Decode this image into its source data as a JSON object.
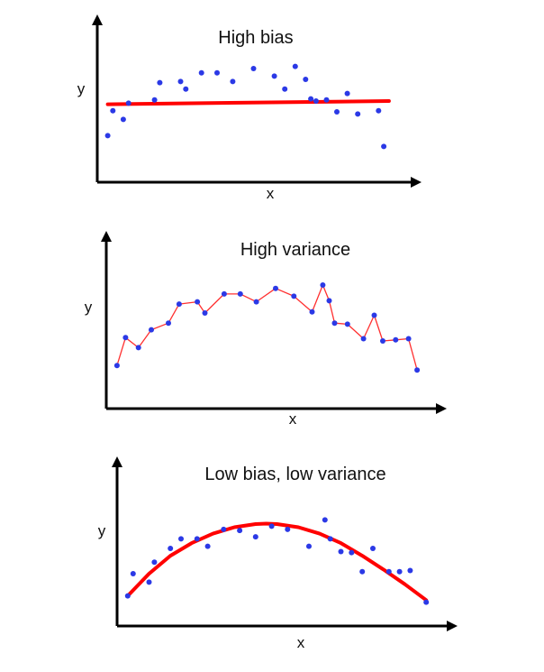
{
  "colors": {
    "axis": "#000000",
    "points": "#2b39e6",
    "fit": "#ff0000",
    "fit_thin": "#ff3030"
  },
  "chart_data": [
    {
      "type": "scatter",
      "title": "High bias",
      "xlabel": "x",
      "ylabel": "y",
      "xlim": [
        0,
        30
      ],
      "ylim": [
        0,
        10
      ],
      "grid": false,
      "legend": "none",
      "series": [
        {
          "kind": "points",
          "x": [
            1,
            1.5,
            2.5,
            3,
            5.5,
            6,
            8,
            8.5,
            10,
            11.5,
            13,
            15,
            17,
            18,
            19,
            20,
            20.5,
            21,
            22,
            23,
            24,
            25,
            27,
            27.5
          ],
          "y": [
            3.3,
            5.6,
            4.8,
            6.3,
            6.6,
            8.2,
            8.3,
            7.6,
            9.1,
            9.1,
            8.3,
            9.5,
            8.8,
            7.6,
            9.7,
            8.5,
            6.7,
            6.5,
            6.6,
            5.5,
            7.2,
            5.3,
            5.6,
            2.3
          ]
        },
        {
          "kind": "line",
          "style": "thick",
          "x": [
            1,
            28
          ],
          "y": [
            6.2,
            6.5
          ]
        }
      ]
    },
    {
      "type": "line",
      "title": "High variance",
      "xlabel": "x",
      "ylabel": "y",
      "xlim": [
        0,
        30
      ],
      "ylim": [
        0,
        10
      ],
      "grid": false,
      "legend": "none",
      "series": [
        {
          "kind": "connected-points",
          "style": "thin",
          "x": [
            1,
            1.8,
            3,
            4.2,
            5.8,
            6.8,
            8.5,
            9.2,
            11,
            12.5,
            14,
            15.8,
            17.5,
            19.2,
            20.2,
            20.8,
            21.3,
            22.5,
            24,
            25,
            25.8,
            27,
            28.2,
            29
          ],
          "y": [
            2.8,
            5.3,
            4.4,
            6.0,
            6.6,
            8.3,
            8.5,
            7.5,
            9.2,
            9.2,
            8.5,
            9.7,
            9.0,
            7.6,
            10.0,
            8.6,
            6.6,
            6.5,
            5.2,
            7.3,
            5.0,
            5.1,
            5.2,
            2.4
          ]
        }
      ]
    },
    {
      "type": "scatter",
      "title": "Low bias, low variance",
      "xlabel": "x",
      "ylabel": "y",
      "xlim": [
        0,
        30
      ],
      "ylim": [
        0,
        10
      ],
      "grid": false,
      "legend": "none",
      "series": [
        {
          "kind": "points",
          "x": [
            1,
            1.5,
            3,
            3.5,
            5,
            6,
            7.5,
            8.5,
            10,
            11.5,
            13,
            14.5,
            16,
            18,
            19.5,
            20,
            21,
            22,
            23,
            24,
            25.5,
            26.5,
            27.5,
            29
          ],
          "y": [
            2.0,
            4.1,
            3.3,
            5.2,
            6.5,
            7.4,
            7.4,
            6.7,
            8.3,
            8.2,
            7.6,
            8.6,
            8.3,
            6.7,
            9.2,
            7.4,
            6.2,
            6.1,
            4.3,
            6.5,
            4.3,
            4.3,
            4.4,
            1.4
          ]
        },
        {
          "kind": "curve",
          "style": "thick",
          "x": [
            1,
            3,
            5,
            7,
            9,
            11,
            13,
            14,
            15,
            17,
            19,
            21,
            23,
            25,
            27,
            29
          ],
          "y": [
            2.0,
            4.1,
            5.8,
            7.0,
            7.9,
            8.5,
            8.8,
            8.85,
            8.8,
            8.5,
            7.9,
            7.0,
            5.8,
            4.5,
            3.1,
            1.6
          ]
        }
      ]
    }
  ]
}
